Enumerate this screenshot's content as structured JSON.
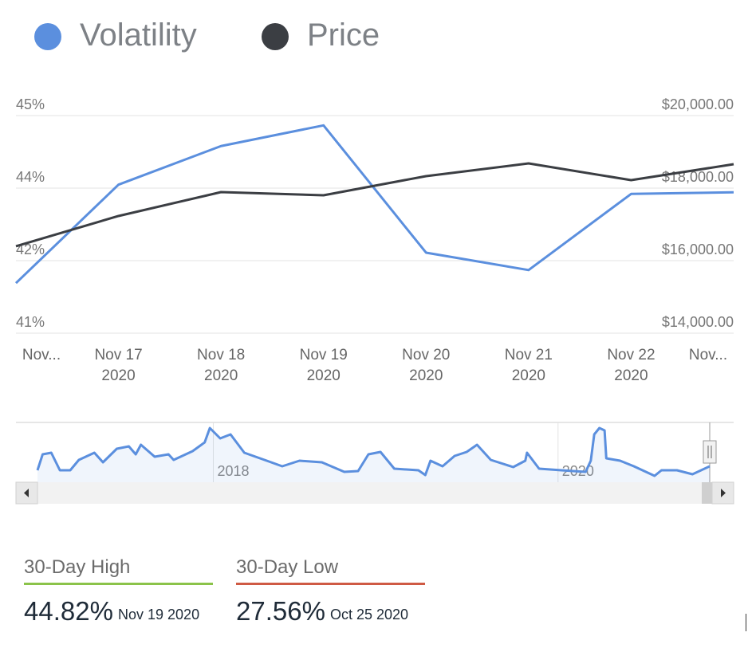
{
  "chart_data": [
    {
      "type": "line",
      "categories": [
        "Nov...",
        "Nov 17\n2020",
        "Nov 18\n2020",
        "Nov 19\n2020",
        "Nov 20\n2020",
        "Nov 21\n2020",
        "Nov 22\n2020",
        "Nov..."
      ],
      "series": [
        {
          "name": "Volatility",
          "color": "#5b8fde",
          "values": [
            41.92,
            43.73,
            44.44,
            44.82,
            42.48,
            42.16,
            43.56,
            43.59
          ]
        },
        {
          "name": "Price",
          "color": "#3b3e43",
          "axis": "y2",
          "values": [
            16396,
            17231,
            17890,
            17802,
            18330,
            18681,
            18220,
            18659
          ]
        }
      ],
      "ylim": [
        41,
        45
      ],
      "yticks": [
        {
          "value": 45,
          "label": "45%"
        },
        {
          "value": 43.667,
          "label": "44%"
        },
        {
          "value": 42.333,
          "label": "42%"
        },
        {
          "value": 41,
          "label": "41%"
        }
      ],
      "y2lim": [
        14000,
        20000
      ],
      "y2ticks": [
        {
          "value": 20000,
          "label": "$20,000.00"
        },
        {
          "value": 18000,
          "label": "$18,000.00"
        },
        {
          "value": 16000,
          "label": "$16,000.00"
        },
        {
          "value": 14000,
          "label": "$14,000.00"
        }
      ],
      "grid": true,
      "legend": "top-left"
    },
    {
      "type": "line",
      "x": [
        2016.98,
        2017.01,
        2017.06,
        2017.11,
        2017.17,
        2017.22,
        2017.31,
        2017.36,
        2017.44,
        2017.51,
        2017.55,
        2017.58,
        2017.66,
        2017.74,
        2017.77,
        2017.88,
        2017.95,
        2017.98,
        2018.04,
        2018.1,
        2018.18,
        2018.31,
        2018.4,
        2018.5,
        2018.63,
        2018.76,
        2018.84,
        2018.9,
        2018.97,
        2019.05,
        2019.19,
        2019.23,
        2019.26,
        2019.33,
        2019.4,
        2019.47,
        2019.53,
        2019.61,
        2019.74,
        2019.81,
        2019.82,
        2019.89,
        2020.02,
        2020.16,
        2020.19,
        2020.21,
        2020.24,
        2020.27,
        2020.28,
        2020.36,
        2020.44,
        2020.53,
        2020.56,
        2020.6,
        2020.69,
        2020.78,
        2020.88
      ],
      "values": [
        15,
        35,
        37,
        15,
        15,
        28,
        37,
        25,
        42,
        45,
        35,
        47,
        32,
        35,
        28,
        39,
        50,
        68,
        55,
        60,
        37,
        27,
        20,
        27,
        25,
        13,
        14,
        35,
        38,
        17,
        15,
        9,
        27,
        20,
        33,
        38,
        47,
        28,
        19,
        27,
        37,
        17,
        15,
        13,
        27,
        60,
        68,
        65,
        30,
        27,
        20,
        11,
        8,
        15,
        15,
        10,
        20
      ],
      "color": "#5b8fde",
      "xlim": [
        2016.98,
        2020.88
      ],
      "xticks": [
        2018,
        2020
      ],
      "ylim": [
        0,
        75
      ]
    }
  ],
  "stats": [
    {
      "label": "30-Day High",
      "value": "44.82%",
      "date": "Nov 19 2020"
    },
    {
      "label": "30-Day Low",
      "value": "27.56%",
      "date": "Oct 25 2020"
    }
  ]
}
